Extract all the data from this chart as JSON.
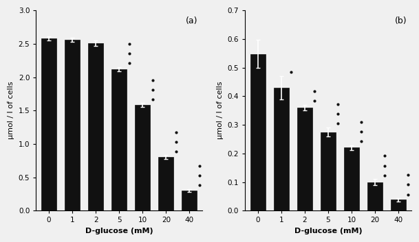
{
  "panel_a": {
    "categories": [
      "0",
      "1",
      "2",
      "5",
      "10",
      "20",
      "40"
    ],
    "values": [
      2.58,
      2.56,
      2.51,
      2.12,
      1.58,
      0.8,
      0.3
    ],
    "errors": [
      0.03,
      0.03,
      0.04,
      0.03,
      0.03,
      0.03,
      0.02
    ],
    "ylabel": "μmol / l of cells",
    "xlabel": "D-glucose (mM)",
    "ylim": [
      0.0,
      3.0
    ],
    "yticks": [
      0.0,
      0.5,
      1.0,
      1.5,
      2.0,
      2.5,
      3.0
    ],
    "label": "(a)",
    "significance": [
      "",
      "",
      "",
      "***",
      "***",
      "***",
      "***"
    ]
  },
  "panel_b": {
    "categories": [
      "0",
      "1",
      "2",
      "5",
      "10",
      "20",
      "40"
    ],
    "values": [
      0.548,
      0.43,
      0.36,
      0.275,
      0.22,
      0.1,
      0.038
    ],
    "errors": [
      0.05,
      0.04,
      0.01,
      0.015,
      0.008,
      0.01,
      0.005
    ],
    "ylabel": "μmol / l of cells",
    "xlabel": "D-glucose (mM)",
    "ylim": [
      0.0,
      0.7
    ],
    "yticks": [
      0.0,
      0.1,
      0.2,
      0.3,
      0.4,
      0.5,
      0.6,
      0.7
    ],
    "label": "(b)",
    "significance": [
      "",
      "*",
      "**",
      "***",
      "***",
      "***",
      "***"
    ]
  },
  "bg_color": "#f0f0f0",
  "bar_color": "#111111",
  "errorbar_color": "#111111",
  "fontsize_label": 8,
  "fontsize_tick": 7.5,
  "fontsize_panel": 9
}
